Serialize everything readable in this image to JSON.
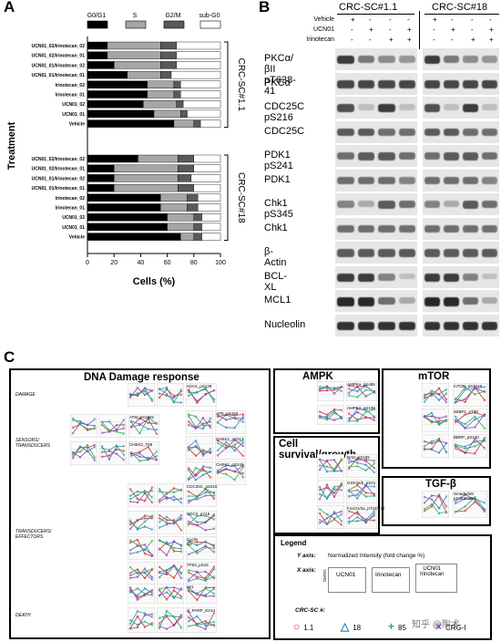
{
  "panels": {
    "a": "A",
    "b": "B",
    "c": "C"
  },
  "panelA": {
    "legend": [
      {
        "label": "G0/G1",
        "color": "#000000"
      },
      {
        "label": "S",
        "color": "#a6a6a6"
      },
      {
        "label": "G2/M",
        "color": "#595959"
      },
      {
        "label": "sub-G0",
        "color": "#ffffff"
      }
    ],
    "ylabel": "Treatment",
    "xlabel": "Cells (%)",
    "xticks": [
      "0",
      "20",
      "40",
      "60",
      "80",
      "100"
    ],
    "group1_label": "CRC-SC#1.1",
    "group2_label": "CRC-SC#18"
  },
  "chart_data": {
    "type": "bar",
    "orientation": "horizontal-stacked",
    "xlabel": "Cells (%)",
    "ylabel": "Treatment",
    "xlim": [
      0,
      100
    ],
    "groups": [
      {
        "name": "CRC-SC#1.1",
        "categories": [
          "UCN01_02/Irinotecan_02",
          "UCN01_02/Irinotecan_01",
          "UCN01_01/Irinotecan_02",
          "UCN01_01/Irinotecan_01",
          "Irinotecan_02",
          "Irinotecan_01",
          "UCN01_02",
          "UCN01_01",
          "Vehicle"
        ],
        "series": [
          {
            "name": "G0/G1",
            "values": [
              15,
              15,
              20,
              30,
              45,
              45,
              42,
              50,
              65
            ]
          },
          {
            "name": "S",
            "values": [
              40,
              40,
              35,
              25,
              20,
              20,
              25,
              20,
              15
            ]
          },
          {
            "name": "G2/M",
            "values": [
              12,
              12,
              12,
              8,
              5,
              5,
              5,
              5,
              5
            ]
          },
          {
            "name": "sub-G0",
            "values": [
              33,
              33,
              33,
              37,
              30,
              30,
              28,
              25,
              15
            ]
          }
        ]
      },
      {
        "name": "CRC-SC#18",
        "categories": [
          "UCN01_02/Irinotecan_02",
          "UCN01_02/Irinotecan_01",
          "UCN01_01/Irinotecan_02",
          "UCN01_01/Irinotecan_01",
          "Irinotecan_02",
          "Irinotecan_01",
          "UCN01_02",
          "UCN01_01",
          "Vehicle"
        ],
        "series": [
          {
            "name": "G0/G1",
            "values": [
              38,
              20,
              20,
              20,
              55,
              55,
              60,
              60,
              70
            ]
          },
          {
            "name": "S",
            "values": [
              30,
              48,
              48,
              48,
              20,
              20,
              20,
              20,
              10
            ]
          },
          {
            "name": "G2/M",
            "values": [
              12,
              12,
              10,
              12,
              8,
              8,
              6,
              6,
              6
            ]
          },
          {
            "name": "sub-G0",
            "values": [
              20,
              20,
              22,
              20,
              17,
              17,
              14,
              14,
              14
            ]
          }
        ]
      }
    ]
  },
  "panelB": {
    "group1": "CRC-SC#1.1",
    "group2": "CRC-SC#18",
    "conditions": [
      {
        "label": "Vehicle",
        "marks": [
          "+",
          "-",
          "-",
          "-"
        ]
      },
      {
        "label": "UCN01",
        "marks": [
          "-",
          "+",
          "-",
          "+"
        ]
      },
      {
        "label": "Irinotecan",
        "marks": [
          "-",
          "-",
          "+",
          "+"
        ]
      }
    ],
    "blots": [
      "PKCα/βII pT638-41",
      "PKCα",
      "CDC25C pS216",
      "CDC25C",
      "PDK1 pS241",
      "PDK1",
      "Chk1 pS345",
      "Chk1",
      "β-Actin",
      "BCL-XL",
      "MCL1",
      "Nucleolin"
    ]
  },
  "panelC": {
    "dna_title": "DNA Damage response",
    "ampk_title": "AMPK",
    "mtor_title": "mTOR",
    "survival_title": "Cell survival/growth",
    "tgf_title": "TGF-β",
    "legend_title": "Legend",
    "rows": [
      "DAMAGE",
      "SENSORS/ TRANSDUCERS",
      "TRANSDUCERS/ EFFECTORS",
      "DEATH"
    ],
    "plot_labels": [
      "H2AX_pS139",
      "ATM_pS1981",
      "ATR_pS428",
      "CHEK2_T68",
      "CHEK1_pS317",
      "CHEK1_pS345",
      "CDC25C_pS216",
      "CDC2_pY15",
      "Cyclin B1",
      "TP53_pS15",
      "p21",
      "cl_PARP_D214",
      "AMPKa_pS485",
      "AMPK2_pS108",
      "BAD_pS155",
      "GSK3a/b_pS21",
      "FoxO1/3a_pT24/T32",
      "mTOR_pS2448",
      "4EBP1_pT70",
      "BBRP_pS240",
      "Smad1/5/8 pS463/465"
    ],
    "legend_y": "Y axis:",
    "legend_y_text": "Normalized Intensity (fold change %)",
    "legend_x": "X axis:",
    "legend_x_groups": [
      "UCN01",
      "Irinotecan",
      "UCN01\nIrinotecan"
    ],
    "legend_dmso": "DMSO",
    "legend_crc": "CRC-SC #:",
    "crc_items": [
      {
        "symbol": "○",
        "label": "1.1",
        "color": "#c0392b"
      },
      {
        "symbol": "△",
        "label": "18",
        "color": "#2e86c1"
      },
      {
        "symbol": "+",
        "label": "85",
        "color": "#27ae60"
      },
      {
        "symbol": "×",
        "label": "CRG-I",
        "color": "#8e44ad"
      }
    ],
    "watermark": "知乎 @陶术"
  }
}
